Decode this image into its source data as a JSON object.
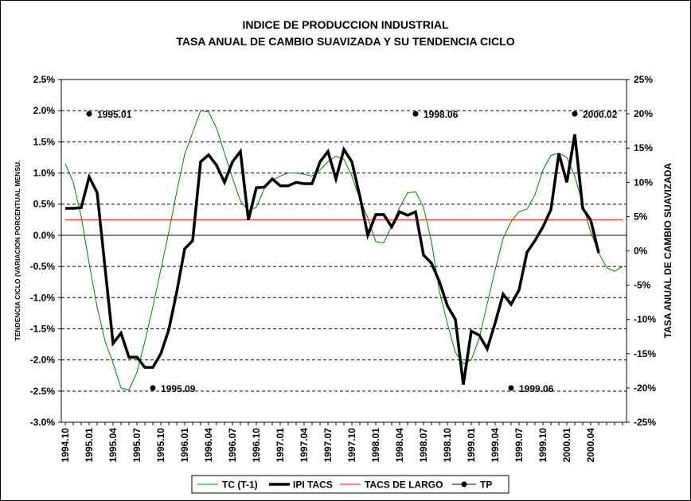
{
  "chart_data": {
    "type": "line",
    "title_line1": "INDICE DE PRODUCCION INDUSTRIAL",
    "title_line2": "TASA ANUAL DE CAMBIO SUAVIZADA Y SU TENDENCIA CICLO",
    "ylabel_left": "TENDENCIA CICLO (VARIACION PORCENTUAL MENSU.",
    "ylabel_right": "TASA ANUAL DE CAMBIO SUAVIZADA",
    "y_left_range": [
      -3.0,
      2.5
    ],
    "y_left_ticks": [
      "2.5%",
      "2.0%",
      "1.5%",
      "1.0%",
      "0.5%",
      "0.0%",
      "-0.5%",
      "-1.0%",
      "-1.5%",
      "-2.0%",
      "-2.5%",
      "-3.0%"
    ],
    "y_right_range": [
      -25,
      25
    ],
    "y_right_ticks": [
      "25%",
      "20%",
      "15%",
      "10%",
      "5%",
      "0%",
      "-5%",
      "-10%",
      "-15%",
      "-20%",
      "-25%"
    ],
    "x_tick_labels": [
      "1994.10",
      "1995.01",
      "1995.04",
      "1995.07",
      "1995.10",
      "1996.01",
      "1996.04",
      "1996.07",
      "1996.10",
      "1997.01",
      "1997.04",
      "1997.07",
      "1997.10",
      "1998.01",
      "1998.04",
      "1998.07",
      "1998.10",
      "1999.01",
      "1999.04",
      "1999.07",
      "1999.10",
      "2000.01",
      "2000.04"
    ],
    "gridlines": "horizontal dashed",
    "legend_position": "bottom",
    "series": [
      {
        "name": "TC (T-1)",
        "axis": "left",
        "color": "#008000",
        "values": [
          1.15,
          0.85,
          0.3,
          -0.45,
          -1.15,
          -1.7,
          -2.05,
          -2.45,
          -2.48,
          -2.2,
          -1.7,
          -1.15,
          -0.55,
          0.05,
          0.7,
          1.3,
          1.65,
          2.0,
          1.98,
          1.72,
          1.32,
          0.92,
          0.55,
          0.4,
          0.45,
          0.75,
          0.88,
          0.95,
          1.0,
          1.0,
          0.98,
          0.95,
          1.05,
          1.18,
          1.27,
          1.22,
          0.95,
          0.58,
          0.28,
          -0.1,
          -0.12,
          0.15,
          0.45,
          0.68,
          0.7,
          0.45,
          -0.1,
          -0.9,
          -1.42,
          -1.88,
          -2.06,
          -2.0,
          -1.65,
          -1.1,
          -0.55,
          -0.05,
          0.22,
          0.38,
          0.42,
          0.65,
          1.05,
          1.28,
          1.32,
          1.25,
          0.95,
          0.5,
          0.05,
          -0.28,
          -0.52,
          -0.58,
          -0.5
        ]
      },
      {
        "name": "IPI TACS",
        "axis": "right",
        "color": "#000000",
        "values": [
          6.2,
          6.2,
          6.3,
          10.8,
          8.5,
          -2.5,
          -13.5,
          -12.0,
          -15.5,
          -15.5,
          -17.0,
          -17.0,
          -15.0,
          -11.5,
          -6.0,
          0.3,
          1.5,
          13.0,
          14.0,
          12.5,
          10.0,
          13.0,
          14.5,
          4.5,
          9.2,
          9.3,
          10.5,
          9.5,
          9.5,
          10.0,
          9.8,
          9.8,
          13.0,
          14.5,
          10.5,
          14.8,
          13.0,
          8.0,
          2.3,
          5.3,
          5.3,
          3.5,
          5.7,
          5.2,
          5.7,
          -0.6,
          -1.8,
          -4.5,
          -8.0,
          -10.0,
          -19.5,
          -11.7,
          -12.3,
          -14.3,
          -10.5,
          -6.3,
          -7.8,
          -5.7,
          -0.2,
          1.5,
          3.5,
          6.0,
          14.2,
          10.0,
          17.0,
          6.2,
          4.5,
          -0.3
        ]
      },
      {
        "name": "TACS DE LARGO",
        "axis": "left",
        "color": "#ff0000",
        "values": [
          0.25,
          0.25
        ]
      },
      {
        "name": "TP",
        "axis": "right",
        "color": "#000000",
        "points": [
          {
            "label": "1995.01",
            "x_index": 3,
            "y": 20
          },
          {
            "label": "1995.09",
            "x_index": 11,
            "y": -20
          },
          {
            "label": "1998.06",
            "x_index": 44,
            "y": 20
          },
          {
            "label": "1999.06",
            "x_index": 56,
            "y": -20
          },
          {
            "label": "2000.02",
            "x_index": 64,
            "y": 20
          }
        ]
      }
    ]
  }
}
